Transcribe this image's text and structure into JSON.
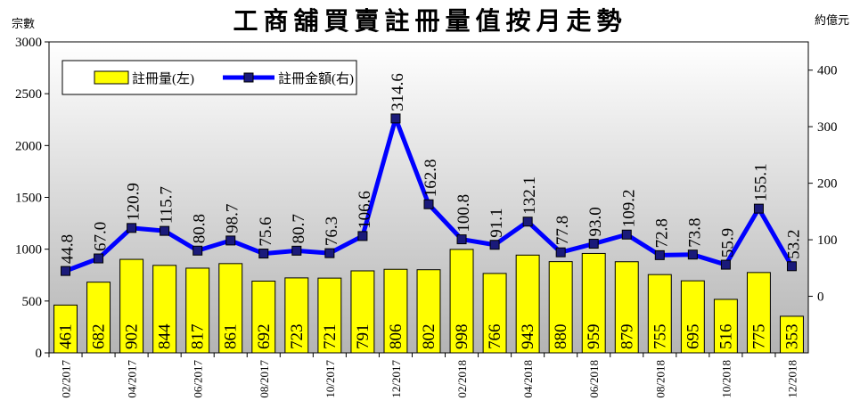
{
  "chart_data": {
    "type": "bar+line",
    "title": "工商舖買賣註冊量值按月走勢",
    "ylabel_left": "宗數",
    "ylabel_right": "約億元",
    "categories": [
      "02/2017",
      "03/2017",
      "04/2017",
      "05/2017",
      "06/2017",
      "07/2017",
      "08/2017",
      "09/2017",
      "10/2017",
      "11/2017",
      "12/2017",
      "01/2018",
      "02/2018",
      "03/2018",
      "04/2018",
      "05/2018",
      "06/2018",
      "07/2018",
      "08/2018",
      "09/2018",
      "10/2018",
      "11/2018",
      "12/2018"
    ],
    "x_tick_labels": [
      "02/2017",
      "",
      "04/2017",
      "",
      "06/2017",
      "",
      "08/2017",
      "",
      "10/2017",
      "",
      "12/2017",
      "",
      "02/2018",
      "",
      "04/2018",
      "",
      "06/2018",
      "",
      "08/2018",
      "",
      "10/2018",
      "",
      "12/2018"
    ],
    "series": [
      {
        "name": "註冊量(左)",
        "type": "bar",
        "axis": "left",
        "color": "#ffff00",
        "values": [
          461,
          682,
          902,
          844,
          817,
          861,
          692,
          723,
          721,
          791,
          806,
          802,
          998,
          766,
          943,
          880,
          959,
          879,
          755,
          695,
          516,
          775,
          353
        ]
      },
      {
        "name": "註冊金額(右)",
        "type": "line",
        "axis": "right",
        "color": "#0000ff",
        "values": [
          44.8,
          67.0,
          120.9,
          115.7,
          80.8,
          98.7,
          75.6,
          80.7,
          76.3,
          106.6,
          314.6,
          162.8,
          100.8,
          91.1,
          132.1,
          77.8,
          93.0,
          109.2,
          72.8,
          73.8,
          55.9,
          155.1,
          53.2
        ],
        "labels": [
          "44.8",
          "67.0",
          "120.9",
          "115.7",
          "80.8",
          "98.7",
          "75.6",
          "80.7",
          "76.3",
          "106.6",
          "314.6",
          "162.8",
          "100.8",
          "91.1",
          "132.1",
          "77.8",
          "93.0",
          "109.2",
          "72.8",
          "73.8",
          "55.9",
          "155.1",
          "53.2"
        ]
      }
    ],
    "ylim_left": [
      0,
      3000
    ],
    "yticks_left": [
      0,
      500,
      1000,
      1500,
      2000,
      2500,
      3000
    ],
    "ylim_right": [
      -100,
      450
    ],
    "yticks_right": [
      0,
      100,
      200,
      300,
      400
    ],
    "legend_position": "top-left",
    "background": "gradient-gray"
  }
}
